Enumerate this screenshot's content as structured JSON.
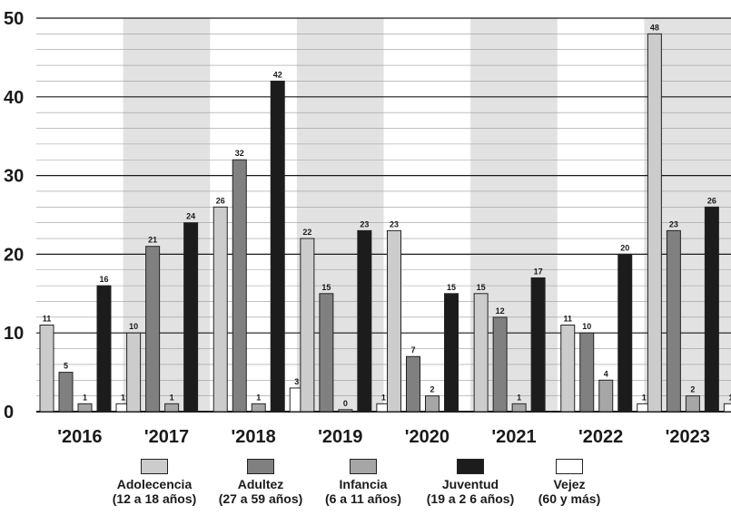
{
  "chart_data": {
    "type": "bar",
    "title": "",
    "xlabel": "",
    "ylabel": "",
    "ylim": [
      0,
      50
    ],
    "yticks": [
      0,
      10,
      20,
      30,
      40,
      50
    ],
    "grid": true,
    "categories": [
      "'2016",
      "'2017",
      "'2018",
      "'2019",
      "'2020",
      "'2021",
      "'2022",
      "'2023"
    ],
    "series": [
      {
        "name": "Adolecencia",
        "range": "(12 a 18 años)",
        "color": "#cccccc",
        "values": [
          11,
          10,
          26,
          22,
          23,
          15,
          11,
          48
        ]
      },
      {
        "name": "Adultez",
        "range": "(27 a 59 años)",
        "color": "#808080",
        "values": [
          5,
          21,
          32,
          15,
          7,
          12,
          10,
          23
        ]
      },
      {
        "name": "Infancia",
        "range": "(6 a 11 años)",
        "color": "#a6a6a6",
        "values": [
          1,
          1,
          1,
          0,
          2,
          1,
          4,
          2
        ]
      },
      {
        "name": "Juventud",
        "range": "(19 a 2 6 años)",
        "color": "#1c1c1c",
        "values": [
          16,
          24,
          42,
          23,
          15,
          17,
          20,
          26
        ]
      },
      {
        "name": "Vejez",
        "range": "(60 y más)",
        "color": "#ffffff",
        "values": [
          1,
          null,
          3,
          1,
          null,
          null,
          1,
          1
        ]
      }
    ],
    "legend_position": "bottom",
    "shaded_bands": [
      "'2017",
      "'2019",
      "'2021",
      "'2023"
    ]
  }
}
